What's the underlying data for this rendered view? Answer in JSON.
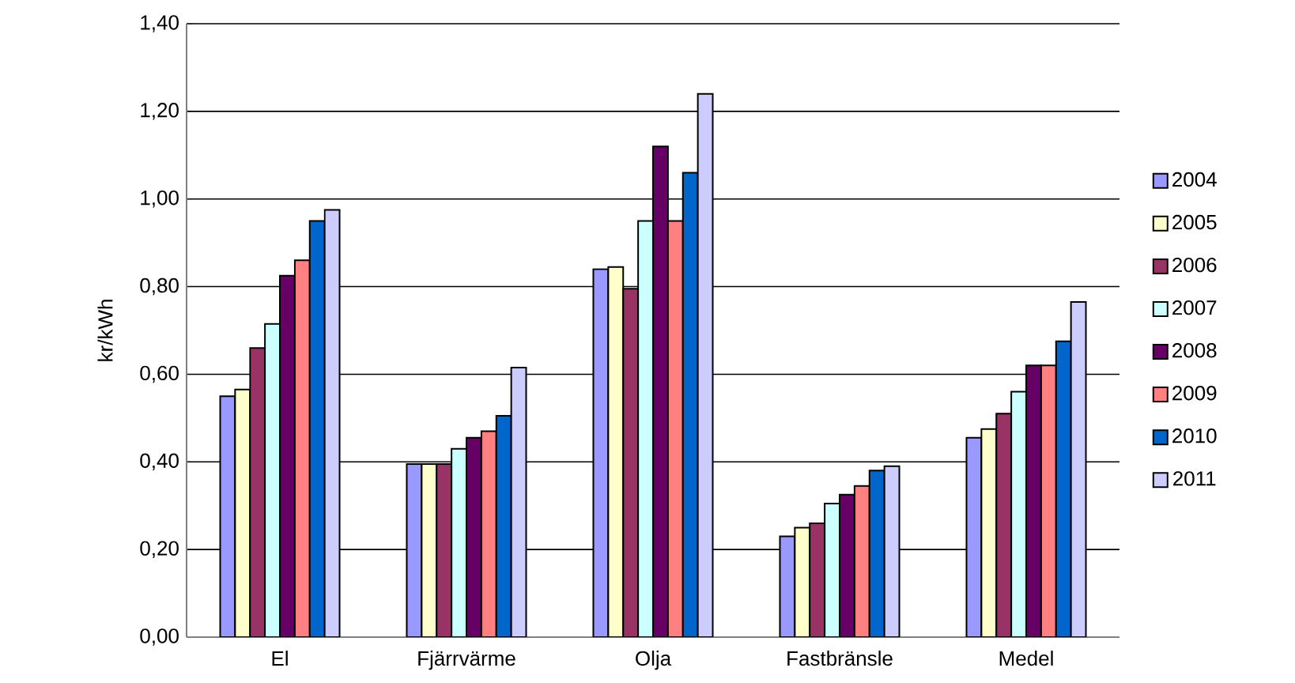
{
  "chart_data": {
    "type": "bar",
    "ylabel": "kr/kWh",
    "categories": [
      "El",
      "Fjärrvärme",
      "Olja",
      "Fastbränsle",
      "Medel"
    ],
    "series": [
      {
        "name": "2004",
        "color": "#9999ff",
        "values": [
          0.55,
          0.395,
          0.84,
          0.23,
          0.455
        ]
      },
      {
        "name": "2005",
        "color": "#ffffcc",
        "values": [
          0.565,
          0.395,
          0.845,
          0.25,
          0.475
        ]
      },
      {
        "name": "2006",
        "color": "#993366",
        "values": [
          0.66,
          0.395,
          0.795,
          0.26,
          0.51
        ]
      },
      {
        "name": "2007",
        "color": "#ccffff",
        "values": [
          0.715,
          0.43,
          0.95,
          0.305,
          0.56
        ]
      },
      {
        "name": "2008",
        "color": "#660066",
        "values": [
          0.825,
          0.455,
          1.12,
          0.325,
          0.62
        ]
      },
      {
        "name": "2009",
        "color": "#ff8080",
        "values": [
          0.86,
          0.47,
          0.95,
          0.345,
          0.62
        ]
      },
      {
        "name": "2010",
        "color": "#0066cc",
        "values": [
          0.95,
          0.505,
          1.06,
          0.38,
          0.675
        ]
      },
      {
        "name": "2011",
        "color": "#ccccff",
        "values": [
          0.975,
          0.615,
          1.24,
          0.39,
          0.765
        ]
      }
    ],
    "ylim": [
      0,
      1.4
    ],
    "yticks": [
      {
        "value": 0,
        "label": "0,00"
      },
      {
        "value": 0.2,
        "label": "0,20"
      },
      {
        "value": 0.4,
        "label": "0,40"
      },
      {
        "value": 0.6,
        "label": "0,60"
      },
      {
        "value": 0.8,
        "label": "0,80"
      },
      {
        "value": 1.0,
        "label": "1,00"
      },
      {
        "value": 1.2,
        "label": "1,20"
      },
      {
        "value": 1.4,
        "label": "1,40"
      }
    ],
    "grid": "y",
    "legend": "right"
  }
}
